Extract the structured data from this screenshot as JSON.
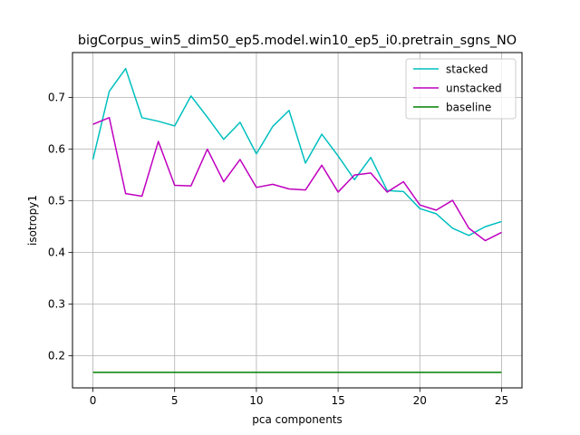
{
  "chart_data": {
    "type": "line",
    "title": "bigCorpus_win5_dim50_ep5.model.win10_ep5_i0.pretrain_sgns_NO",
    "xlabel": "pca components",
    "ylabel": "isotropy1",
    "xlim": [
      -1.25,
      26.25
    ],
    "ylim": [
      0.138,
      0.787
    ],
    "xticks": [
      0,
      5,
      10,
      15,
      20,
      25
    ],
    "yticks": [
      0.2,
      0.3,
      0.4,
      0.5,
      0.6,
      0.7
    ],
    "xtick_labels": [
      "0",
      "5",
      "10",
      "15",
      "20",
      "25"
    ],
    "ytick_labels": [
      "0.2",
      "0.3",
      "0.4",
      "0.5",
      "0.6",
      "0.7"
    ],
    "grid": true,
    "legend_position": "top-right",
    "x": [
      0,
      1,
      2,
      3,
      4,
      5,
      6,
      7,
      8,
      9,
      10,
      11,
      12,
      13,
      14,
      15,
      16,
      17,
      18,
      19,
      20,
      21,
      22,
      23,
      24,
      25
    ],
    "series": [
      {
        "name": "stacked",
        "color": "#00bfbf",
        "values": [
          0.58,
          0.712,
          0.756,
          0.661,
          0.654,
          0.645,
          0.703,
          0.662,
          0.619,
          0.652,
          0.591,
          0.644,
          0.675,
          0.573,
          0.629,
          0.587,
          0.541,
          0.584,
          0.52,
          0.518,
          0.485,
          0.475,
          0.447,
          0.433,
          0.45,
          0.46
        ]
      },
      {
        "name": "unstacked",
        "color": "#bf00bf",
        "values": [
          0.648,
          0.661,
          0.514,
          0.509,
          0.615,
          0.53,
          0.529,
          0.6,
          0.537,
          0.58,
          0.526,
          0.532,
          0.523,
          0.521,
          0.569,
          0.517,
          0.55,
          0.554,
          0.517,
          0.537,
          0.492,
          0.482,
          0.501,
          0.447,
          0.423,
          0.439
        ]
      },
      {
        "name": "baseline",
        "color": "#008000",
        "values": [
          0.168,
          0.168,
          0.168,
          0.168,
          0.168,
          0.168,
          0.168,
          0.168,
          0.168,
          0.168,
          0.168,
          0.168,
          0.168,
          0.168,
          0.168,
          0.168,
          0.168,
          0.168,
          0.168,
          0.168,
          0.168,
          0.168,
          0.168,
          0.168,
          0.168,
          0.168
        ]
      }
    ]
  }
}
